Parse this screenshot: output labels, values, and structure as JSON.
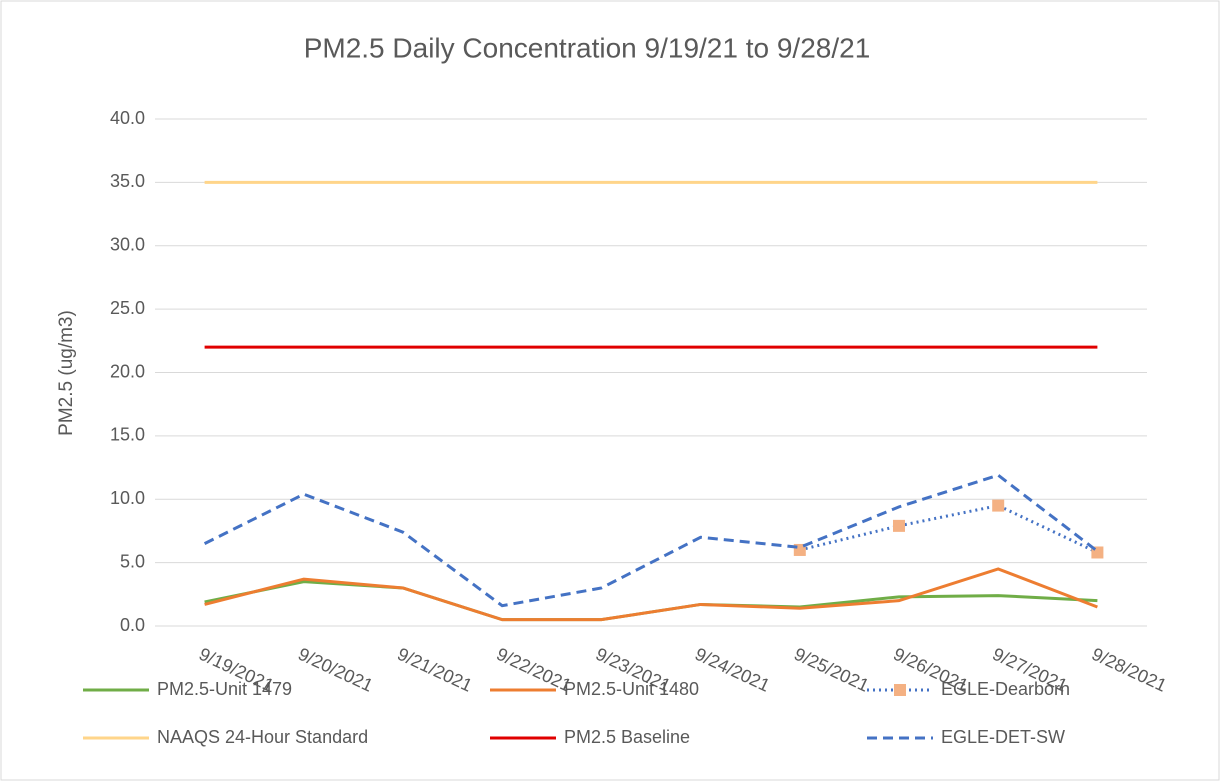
{
  "chart_data": {
    "type": "line",
    "title": "PM2.5 Daily Concentration 9/19/21 to 9/28/21",
    "y_label": "PM2.5 (ug/m3)",
    "categories": [
      "9/19/2021",
      "9/20/2021",
      "9/21/2021",
      "9/22/2021",
      "9/23/2021",
      "9/24/2021",
      "9/25/2021",
      "9/26/2021",
      "9/27/2021",
      "9/28/2021"
    ],
    "series": [
      {
        "name": "PM2.5-Unit 1479",
        "color": "#70ad47",
        "style": "solid",
        "values": [
          1.9,
          3.5,
          3.0,
          0.5,
          0.5,
          1.7,
          1.5,
          2.3,
          2.4,
          2.0
        ]
      },
      {
        "name": "PM2.5-Unit 1480",
        "color": "#ed7d31",
        "style": "solid",
        "values": [
          1.7,
          3.7,
          3.0,
          0.5,
          0.5,
          1.7,
          1.4,
          2.0,
          4.5,
          1.5
        ]
      },
      {
        "name": "EGLE-Dearborn",
        "color": "#4472c4",
        "marker_color": "#f4b183",
        "style": "dotted",
        "values": [
          null,
          null,
          null,
          null,
          null,
          null,
          6.0,
          7.9,
          9.5,
          5.8
        ]
      },
      {
        "name": "NAAQS 24-Hour Standard",
        "color": "#ffd58a",
        "style": "solid",
        "values": [
          35,
          35,
          35,
          35,
          35,
          35,
          35,
          35,
          35,
          35
        ]
      },
      {
        "name": "PM2.5 Baseline",
        "color": "#e00000",
        "style": "solid",
        "values": [
          22,
          22,
          22,
          22,
          22,
          22,
          22,
          22,
          22,
          22
        ]
      },
      {
        "name": "EGLE-DET-SW",
        "color": "#4472c4",
        "style": "dashed",
        "values": [
          6.5,
          10.4,
          7.4,
          1.6,
          3.0,
          7.0,
          6.2,
          9.4,
          11.9,
          5.9
        ]
      }
    ],
    "ylim": [
      0,
      40
    ],
    "yticks": [
      {
        "value": 0,
        "label": "0.0"
      },
      {
        "value": 5,
        "label": "5.0"
      },
      {
        "value": 10,
        "label": "10.0"
      },
      {
        "value": 15,
        "label": "15.0"
      },
      {
        "value": 20,
        "label": "20.0"
      },
      {
        "value": 25,
        "label": "25.0"
      },
      {
        "value": 30,
        "label": "30.0"
      },
      {
        "value": 35,
        "label": "35.0"
      },
      {
        "value": 40,
        "label": "40.0"
      }
    ],
    "grid": true,
    "legend": "bottom"
  }
}
